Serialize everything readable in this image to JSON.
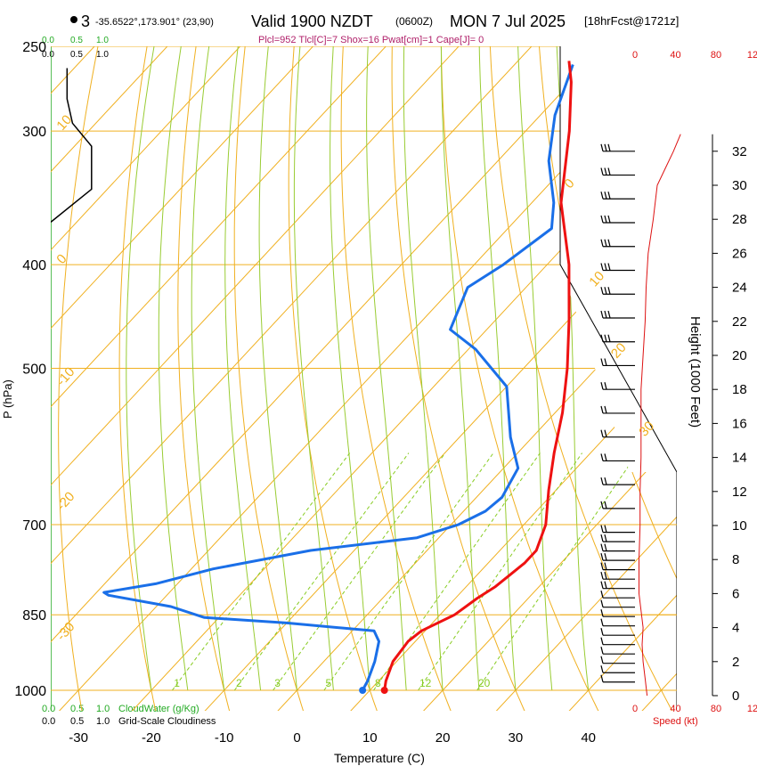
{
  "header": {
    "station_mark": "3",
    "coords": "-35.6522°,173.901° (23,90)",
    "valid": "Valid 1900 NZDT",
    "utc": "(0600Z)",
    "date": "MON 7 Jul 2025",
    "fcst": "[18hrFcst@1721z]",
    "params": "Plcl=952 Tlcl[C]=7 Shox=16 Pwat[cm]=1 Cape[J]= 0"
  },
  "colors": {
    "temperature": "#ee1111",
    "dewpoint": "#1a6fe8",
    "isotherm_dry_adiabat": "#f0b020",
    "moist_adiabat": "#99cc33",
    "mixing_ratio": "#88cc22",
    "cloud_water": "#22aa22",
    "cloudiness": "#000000",
    "speed": "#dd1111"
  },
  "chart_data": {
    "type": "skew-t",
    "xlabel": "Temperature (C)",
    "ylabel": "P (hPa)",
    "right_axis_label": "Height (1000 Feet)",
    "x_ticks": [
      "-30",
      "-20",
      "-10",
      "0",
      "10",
      "20",
      "30",
      "40"
    ],
    "x_tick_values": [
      -30,
      -20,
      -10,
      0,
      10,
      20,
      30,
      40
    ],
    "pressure_ticks": [
      "250",
      "300",
      "400",
      "500",
      "700",
      "850",
      "1000"
    ],
    "pressure_values": [
      250,
      300,
      400,
      500,
      700,
      850,
      1000
    ],
    "height_ticks": [
      "0",
      "2",
      "4",
      "6",
      "8",
      "10",
      "12",
      "14",
      "16",
      "18",
      "20",
      "22",
      "24",
      "26",
      "28",
      "30",
      "32"
    ],
    "isotherm_labels": [
      {
        "text": "10",
        "p": 300,
        "side": "left"
      },
      {
        "text": "0",
        "p": 400,
        "side": "left"
      },
      {
        "text": "-10",
        "p": 520,
        "side": "left"
      },
      {
        "text": "-20",
        "p": 680,
        "side": "left"
      },
      {
        "text": "-30",
        "p": 900,
        "side": "left"
      },
      {
        "text": "0",
        "p": 340,
        "side": "right"
      },
      {
        "text": "10",
        "p": 420,
        "side": "right"
      },
      {
        "text": "20",
        "p": 490,
        "side": "right"
      },
      {
        "text": "30",
        "p": 580,
        "side": "right"
      }
    ],
    "mixing_ratio_labels": [
      "1",
      "2",
      "3",
      "5",
      "8",
      "12",
      "20"
    ],
    "mixing_ratio_values": [
      1,
      2,
      3,
      5,
      8,
      12,
      20
    ],
    "temperature_profile": [
      {
        "p": 1000,
        "t": 12
      },
      {
        "p": 980,
        "t": 11
      },
      {
        "p": 940,
        "t": 9.5
      },
      {
        "p": 900,
        "t": 9
      },
      {
        "p": 880,
        "t": 9.5
      },
      {
        "p": 850,
        "t": 12
      },
      {
        "p": 820,
        "t": 13
      },
      {
        "p": 800,
        "t": 14
      },
      {
        "p": 780,
        "t": 14.5
      },
      {
        "p": 760,
        "t": 15
      },
      {
        "p": 740,
        "t": 15
      },
      {
        "p": 700,
        "t": 13
      },
      {
        "p": 650,
        "t": 9
      },
      {
        "p": 600,
        "t": 5
      },
      {
        "p": 550,
        "t": 1
      },
      {
        "p": 500,
        "t": -4
      },
      {
        "p": 450,
        "t": -10
      },
      {
        "p": 400,
        "t": -17
      },
      {
        "p": 350,
        "t": -26
      },
      {
        "p": 300,
        "t": -34
      },
      {
        "p": 270,
        "t": -40
      },
      {
        "p": 258,
        "t": -43
      }
    ],
    "dewpoint_profile": [
      {
        "p": 1000,
        "t": 9
      },
      {
        "p": 980,
        "t": 8.5
      },
      {
        "p": 940,
        "t": 7
      },
      {
        "p": 900,
        "t": 5
      },
      {
        "p": 880,
        "t": 3
      },
      {
        "p": 865,
        "t": -10
      },
      {
        "p": 855,
        "t": -22
      },
      {
        "p": 835,
        "t": -28
      },
      {
        "p": 815,
        "t": -38
      },
      {
        "p": 810,
        "t": -39
      },
      {
        "p": 795,
        "t": -33
      },
      {
        "p": 770,
        "t": -27
      },
      {
        "p": 740,
        "t": -16
      },
      {
        "p": 720,
        "t": -3
      },
      {
        "p": 700,
        "t": 1
      },
      {
        "p": 680,
        "t": 3
      },
      {
        "p": 660,
        "t": 3.5
      },
      {
        "p": 620,
        "t": 2
      },
      {
        "p": 580,
        "t": -3
      },
      {
        "p": 520,
        "t": -10
      },
      {
        "p": 480,
        "t": -19
      },
      {
        "p": 460,
        "t": -25
      },
      {
        "p": 420,
        "t": -28
      },
      {
        "p": 400,
        "t": -26
      },
      {
        "p": 370,
        "t": -24
      },
      {
        "p": 350,
        "t": -27
      },
      {
        "p": 320,
        "t": -33
      },
      {
        "p": 290,
        "t": -38
      },
      {
        "p": 260,
        "t": -42
      }
    ],
    "cloud_water_axis": [
      "0.0",
      "0.5",
      "1.0"
    ],
    "cloudiness_axis": [
      "0.0",
      "0.5",
      "1.0"
    ],
    "cloud_water_label": "CloudWater (g/Kg)",
    "cloudiness_label": "Grid-Scale Cloudiness",
    "speed_label": "Speed (kt)",
    "speed_ticks": [
      "0",
      "40",
      "80",
      "12"
    ],
    "speed_profile": [
      {
        "h": 0,
        "s": 12
      },
      {
        "h": 1,
        "s": 10
      },
      {
        "h": 2,
        "s": 8
      },
      {
        "h": 3,
        "s": 7
      },
      {
        "h": 4,
        "s": 8
      },
      {
        "h": 5,
        "s": 6
      },
      {
        "h": 6,
        "s": 4
      },
      {
        "h": 7,
        "s": 4
      },
      {
        "h": 8,
        "s": 4
      },
      {
        "h": 10,
        "s": 5
      },
      {
        "h": 12,
        "s": 5
      },
      {
        "h": 14,
        "s": 6
      },
      {
        "h": 16,
        "s": 6
      },
      {
        "h": 18,
        "s": 6
      },
      {
        "h": 20,
        "s": 8
      },
      {
        "h": 22,
        "s": 10
      },
      {
        "h": 24,
        "s": 11
      },
      {
        "h": 26,
        "s": 13
      },
      {
        "h": 28,
        "s": 18
      },
      {
        "h": 30,
        "s": 22
      },
      {
        "h": 31,
        "s": 30
      },
      {
        "h": 32,
        "s": 38
      },
      {
        "h": 33,
        "s": 45
      }
    ],
    "cloudiness_profile": [
      {
        "p": 365,
        "c": 0.0
      },
      {
        "p": 340,
        "c": 0.75
      },
      {
        "p": 310,
        "c": 0.75
      },
      {
        "p": 295,
        "c": 0.4
      },
      {
        "p": 280,
        "c": 0.3
      },
      {
        "p": 262,
        "c": 0.3
      }
    ]
  }
}
